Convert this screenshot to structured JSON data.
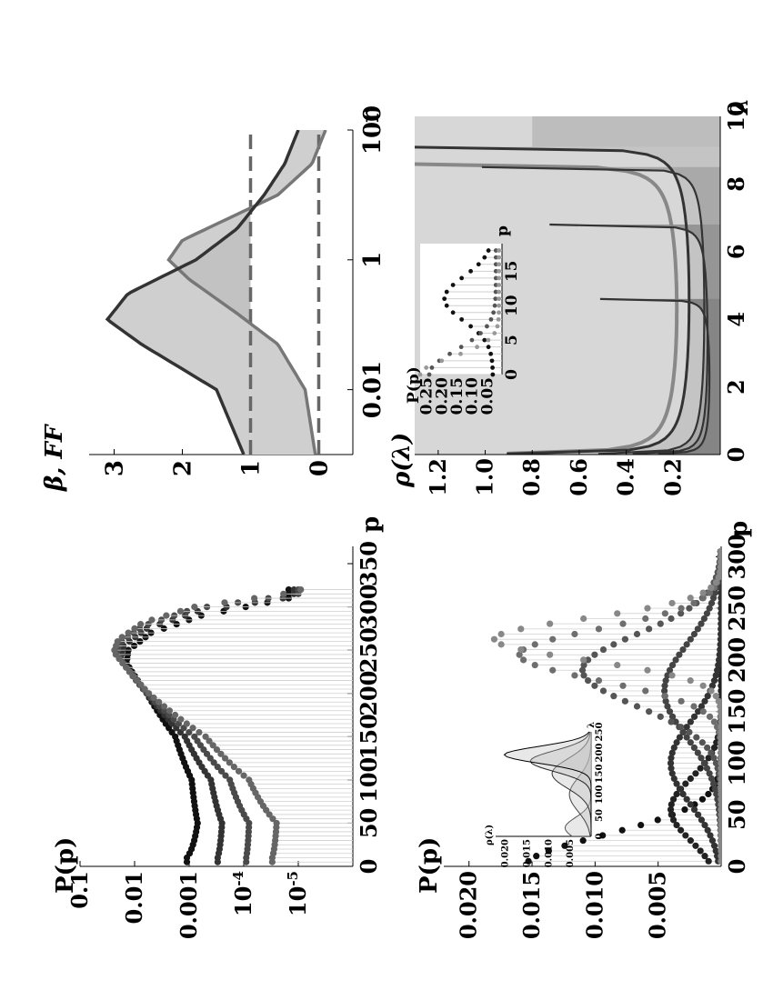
{
  "chart_data": [
    {
      "type": "scatter",
      "panel": "top-left",
      "ylabel": "P(p)",
      "xlabel": "p",
      "xlim": [
        0,
        370
      ],
      "yscale": "log",
      "ylim": [
        1e-06,
        0.1
      ],
      "x_ticks": [
        "0",
        "50",
        "100",
        "150",
        "200",
        "250",
        "300",
        "350"
      ],
      "y_ticks": [
        "0.1",
        "0.01",
        "0.001",
        "10^-4",
        "10^-5"
      ],
      "series": [
        {
          "color": "#111111",
          "points": [
            [
              10,
              0.0011
            ],
            [
              50,
              0.0007
            ],
            [
              100,
              0.0009
            ],
            [
              150,
              0.0018
            ],
            [
              200,
              0.006
            ],
            [
              235,
              0.014
            ],
            [
              250,
              0.013
            ],
            [
              270,
              0.005
            ],
            [
              290,
              0.0006
            ],
            [
              310,
              1.5e-05
            ]
          ]
        },
        {
          "color": "#333333",
          "points": [
            [
              10,
              0.0003
            ],
            [
              50,
              0.00025
            ],
            [
              100,
              0.0004
            ],
            [
              150,
              0.0012
            ],
            [
              200,
              0.006
            ],
            [
              240,
              0.018
            ],
            [
              255,
              0.016
            ],
            [
              275,
              0.006
            ],
            [
              295,
              0.0007
            ],
            [
              312,
              1.2e-05
            ]
          ]
        },
        {
          "color": "#4a4a4a",
          "points": [
            [
              10,
              9e-05
            ],
            [
              50,
              8e-05
            ],
            [
              100,
              0.00018
            ],
            [
              150,
              0.0008
            ],
            [
              200,
              0.006
            ],
            [
              245,
              0.021
            ],
            [
              258,
              0.019
            ],
            [
              278,
              0.007
            ],
            [
              298,
              0.0008
            ],
            [
              315,
              1e-05
            ]
          ]
        },
        {
          "color": "#666666",
          "points": [
            [
              10,
              3e-05
            ],
            [
              50,
              2.5e-05
            ],
            [
              100,
              8e-05
            ],
            [
              150,
              0.0005
            ],
            [
              200,
              0.0055
            ],
            [
              248,
              0.024
            ],
            [
              262,
              0.02
            ],
            [
              282,
              0.007
            ],
            [
              300,
              0.0008
            ],
            [
              318,
              9e-06
            ]
          ]
        }
      ]
    },
    {
      "type": "scatter",
      "panel": "bottom-left",
      "ylabel": "P(p)",
      "xlabel": "p",
      "xlim": [
        0,
        310
      ],
      "ylim": [
        0,
        0.022
      ],
      "x_ticks": [
        "0",
        "50",
        "100",
        "150",
        "200",
        "250",
        "300"
      ],
      "y_ticks": [
        "0.020",
        "0.015",
        "0.010",
        "0.005"
      ],
      "series": [
        {
          "color": "#111111",
          "peak": 0.0155,
          "mu": 0,
          "sigma": 30
        },
        {
          "color": "#222222",
          "peak": 0.004,
          "mu": 55,
          "sigma": 30
        },
        {
          "color": "#333333",
          "peak": 0.004,
          "mu": 100,
          "sigma": 40
        },
        {
          "color": "#444444",
          "peak": 0.0045,
          "mu": 170,
          "sigma": 45
        },
        {
          "color": "#555555",
          "peak": 0.011,
          "mu": 190,
          "sigma": 35
        },
        {
          "color": "#6e6e6e",
          "peak": 0.016,
          "mu": 205,
          "sigma": 25
        },
        {
          "color": "#888888",
          "peak": 0.018,
          "mu": 220,
          "sigma": 20
        }
      ],
      "inset": {
        "ylabel": "ρ(λ)",
        "xlabel": "λ",
        "x_ticks": [
          "0",
          "50",
          "100",
          "150",
          "200",
          "250"
        ],
        "y_ticks": [
          "0.020",
          "0.015",
          "0.010",
          "0.005"
        ]
      }
    },
    {
      "type": "line",
      "panel": "top-right",
      "ylabel": "β, FF",
      "xlabel": "r",
      "xscale": "log",
      "xlim": [
        0.001,
        100
      ],
      "ylim": [
        -0.5,
        3.5
      ],
      "x_ticks": [
        "0.01",
        "1",
        "100"
      ],
      "y_ticks": [
        "3",
        "2",
        "1",
        "0"
      ],
      "series": [
        {
          "name": "",
          "color": "#333333",
          "points": [
            [
              0.001,
              1.1
            ],
            [
              0.01,
              1.5
            ],
            [
              0.05,
              2.6
            ],
            [
              0.12,
              3.1
            ],
            [
              0.3,
              2.8
            ],
            [
              1,
              1.8
            ],
            [
              3,
              1.2
            ],
            [
              10,
              0.8
            ],
            [
              30,
              0.5
            ],
            [
              100,
              0.3
            ]
          ]
        },
        {
          "name": "",
          "color": "#777777",
          "points": [
            [
              0.001,
              0.05
            ],
            [
              0.01,
              0.2
            ],
            [
              0.05,
              0.6
            ],
            [
              0.15,
              1.2
            ],
            [
              0.5,
              1.9
            ],
            [
              1,
              2.2
            ],
            [
              2,
              2.0
            ],
            [
              5,
              1.2
            ],
            [
              10,
              0.6
            ],
            [
              30,
              0.1
            ],
            [
              100,
              -0.1
            ]
          ]
        }
      ],
      "reference_lines": [
        1,
        0
      ]
    },
    {
      "type": "area",
      "panel": "bottom-right",
      "ylabel": "ρ(λ)",
      "xlabel": "λ",
      "xlim": [
        0,
        10
      ],
      "ylim": [
        0,
        1.3
      ],
      "x_ticks": [
        "0",
        "2",
        "4",
        "6",
        "8",
        "10"
      ],
      "y_ticks": [
        "1.2",
        "1.0",
        "0.8",
        "0.6",
        "0.4",
        "0.2"
      ],
      "inset": {
        "ylabel": "P(p)",
        "xlabel": "p",
        "x_ticks": [
          "0",
          "5",
          "10",
          "15"
        ],
        "y_ticks": [
          "0.25",
          "0.20",
          "0.15",
          "0.10",
          "0.05"
        ]
      }
    }
  ]
}
